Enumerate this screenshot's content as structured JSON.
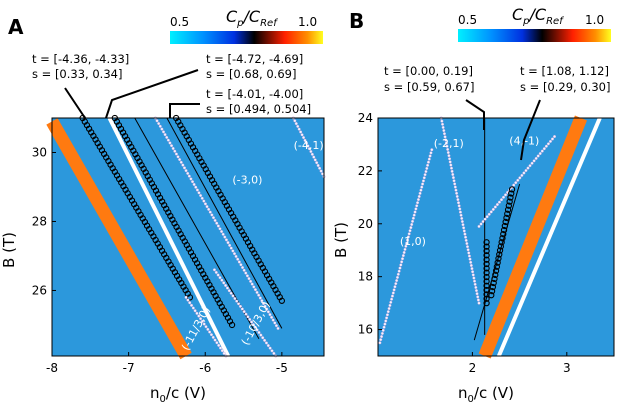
{
  "colorbar": {
    "title_main": "C",
    "title_sub1": "p",
    "title_slash": "/C",
    "title_sub2": "Ref",
    "min_label": "0.5",
    "max_label": "1.0"
  },
  "chart_data": [
    {
      "panel": "A",
      "type": "heatmap",
      "xlabel": "n0/c (V)",
      "ylabel": "B (T)",
      "xlim": [
        -8.0,
        -4.45
      ],
      "ylim": [
        24.1,
        31.0
      ],
      "xticks": [
        "-8",
        "-7",
        "-6",
        "-5"
      ],
      "yticks": [
        "26",
        "28",
        "30"
      ],
      "colorscale": {
        "min": 0.5,
        "max": 1.0,
        "colors": [
          "#00f0ff",
          "#0060ff",
          "#000000",
          "#ff3000",
          "#ffff00"
        ]
      },
      "background_color": "#2c98dc",
      "features": [
        {
          "name": "orange stripe",
          "color": "#ff7a10",
          "points": [
            [
              -8.0,
              30.9
            ],
            [
              -6.25,
              24.1
            ]
          ]
        },
        {
          "name": "white stripe",
          "color": "#ffffff",
          "points": [
            [
              -7.25,
              31.0
            ],
            [
              -5.7,
              24.1
            ]
          ]
        }
      ],
      "series": [
        {
          "name": "black circles 1",
          "marker": "open-circle",
          "color": "#000000",
          "points": [
            [
              -7.6,
              31.0
            ],
            [
              -6.2,
              25.8
            ]
          ]
        },
        {
          "name": "black circles 2",
          "marker": "open-circle",
          "color": "#000000",
          "points": [
            [
              -7.18,
              31.0
            ],
            [
              -5.65,
              25.0
            ]
          ]
        },
        {
          "name": "black circles 3",
          "marker": "open-circle",
          "color": "#000000",
          "points": [
            [
              -6.38,
              31.0
            ],
            [
              -5.0,
              25.7
            ]
          ]
        },
        {
          "name": "white dots -4,1",
          "marker": "dot",
          "color": "#ffffff",
          "points": [
            [
              -4.85,
              31.0
            ],
            [
              -4.45,
              29.3
            ]
          ]
        },
        {
          "name": "white dots -3,0",
          "marker": "dot",
          "color": "#ffffff",
          "points": [
            [
              -6.65,
              31.0
            ],
            [
              -5.05,
              24.9
            ]
          ]
        },
        {
          "name": "white dots -10/3,0",
          "marker": "dot",
          "color": "#ffffff",
          "points": [
            [
              -5.88,
              26.6
            ],
            [
              -5.08,
              24.1
            ]
          ]
        },
        {
          "name": "white dots -11/3,0",
          "marker": "dot",
          "color": "#ffffff",
          "points": [
            [
              -6.25,
              25.8
            ],
            [
              -5.73,
              24.1
            ]
          ]
        }
      ],
      "fit_lines": [
        [
          [
            -6.5,
            31.0
          ],
          [
            -5.0,
            24.9
          ]
        ],
        [
          [
            -6.92,
            31.0
          ],
          [
            -5.3,
            24.6
          ]
        ]
      ],
      "labels": [
        {
          "text": "(-4,1)",
          "x": -4.65,
          "y": 30.1
        },
        {
          "text": "(-3,0)",
          "x": -5.45,
          "y": 29.1
        },
        {
          "text": "(-10/3,0)",
          "x": -5.3,
          "y": 25.0,
          "rotate": -62
        },
        {
          "text": "(-11/3,0)",
          "x": -6.08,
          "y": 24.85,
          "rotate": -62
        }
      ],
      "annotations": [
        {
          "t": "t = [-4.36, -4.33]",
          "s": "s = [0.33, 0.34]"
        },
        {
          "t": "t = [-4.72, -4.69]",
          "s": "s = [0.68, 0.69]"
        },
        {
          "t": "t = [-4.01, -4.00]",
          "s": "s = [0.494, 0.504]"
        }
      ]
    },
    {
      "panel": "B",
      "type": "heatmap",
      "xlabel": "n0/c (V)",
      "ylabel": "B (T)",
      "xlim": [
        1.0,
        3.5
      ],
      "ylim": [
        15.0,
        24.0
      ],
      "xticks": [
        "2",
        "3"
      ],
      "yticks": [
        "16",
        "18",
        "20",
        "22",
        "24"
      ],
      "colorscale": {
        "min": 0.5,
        "max": 1.0,
        "colors": [
          "#00f0ff",
          "#0060ff",
          "#000000",
          "#ff3000",
          "#ffff00"
        ]
      },
      "background_color": "#2c98dc",
      "features": [
        {
          "name": "orange stripe",
          "color": "#ff7a10",
          "points": [
            [
              2.13,
              15.0
            ],
            [
              3.15,
              24.0
            ]
          ]
        },
        {
          "name": "white stripe",
          "color": "#ffffff",
          "points": [
            [
              2.28,
              15.0
            ],
            [
              3.35,
              24.0
            ]
          ]
        }
      ],
      "series": [
        {
          "name": "white dots 1,0",
          "marker": "dot",
          "color": "#ffffff",
          "points": [
            [
              1.02,
              15.5
            ],
            [
              1.57,
              22.8
            ]
          ]
        },
        {
          "name": "white dots -2,1",
          "marker": "dot",
          "color": "#ffffff",
          "points": [
            [
              1.67,
              24.0
            ],
            [
              2.07,
              17.0
            ]
          ]
        },
        {
          "name": "white dots 4,-1",
          "marker": "dot",
          "color": "#ffffff",
          "points": [
            [
              2.07,
              19.9
            ],
            [
              2.87,
              23.3
            ]
          ]
        },
        {
          "name": "black circles 1",
          "marker": "open-circle",
          "color": "#000000",
          "points": [
            [
              2.15,
              17.0
            ],
            [
              2.15,
              19.3
            ]
          ]
        },
        {
          "name": "black circles 2",
          "marker": "open-circle",
          "color": "#000000",
          "points": [
            [
              2.2,
              17.3
            ],
            [
              2.42,
              21.3
            ]
          ]
        }
      ],
      "fit_lines": [
        [
          [
            2.13,
            15.8
          ],
          [
            2.13,
            24.0
          ]
        ],
        [
          [
            2.02,
            15.6
          ],
          [
            2.5,
            21.5
          ]
        ]
      ],
      "labels": [
        {
          "text": "(1,0)",
          "x": 1.37,
          "y": 19.2
        },
        {
          "text": "(-2,1)",
          "x": 1.75,
          "y": 22.9
        },
        {
          "text": "(4,-1)",
          "x": 2.55,
          "y": 23.0
        }
      ],
      "annotations": [
        {
          "t": "t = [0.00, 0.19]",
          "s": "s = [0.59, 0.67]"
        },
        {
          "t": "t = [1.08, 1.12]",
          "s": "s = [0.29, 0.30]"
        }
      ]
    }
  ]
}
